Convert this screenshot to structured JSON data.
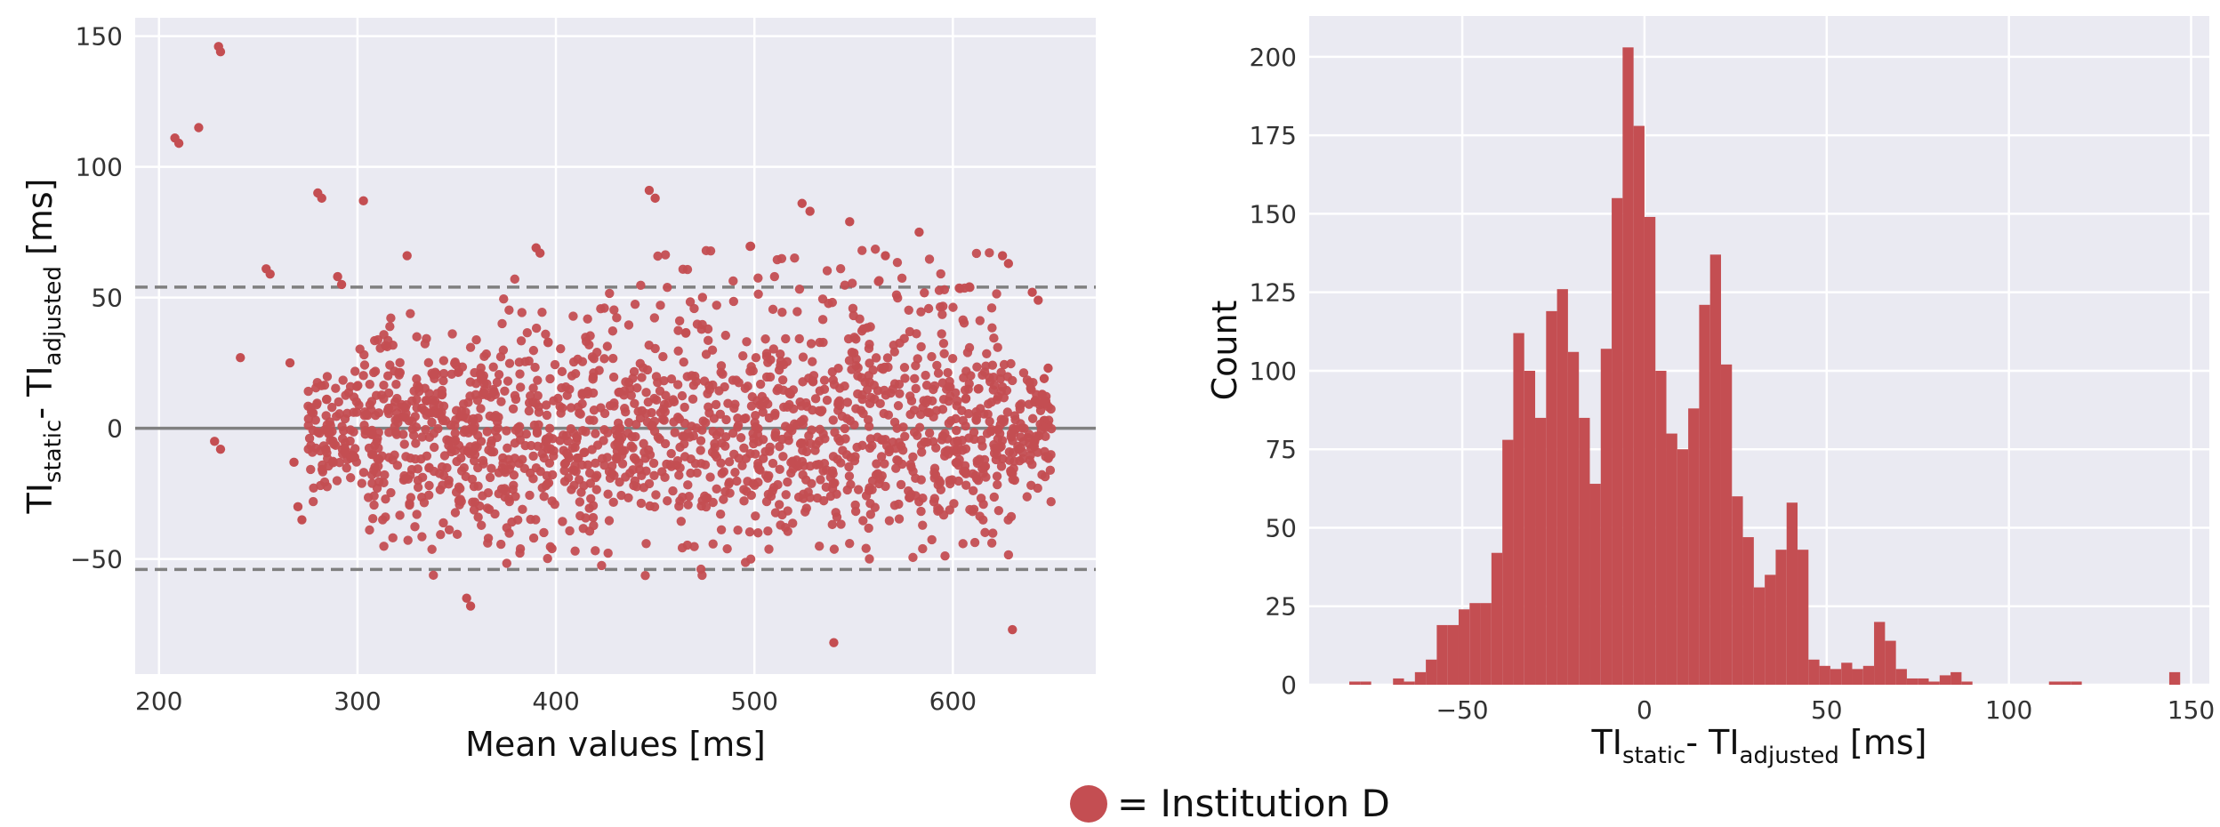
{
  "chart_data": [
    {
      "type": "scatter",
      "title": "",
      "xlabel": "Mean values [ms]",
      "ylabel": {
        "base1": "TI",
        "sub1": "static",
        "sep": "- ",
        "base2": "TI",
        "sub2": "adjusted",
        "unit": " [ms]"
      },
      "xlim": [
        188,
        672
      ],
      "ylim": [
        -94,
        157
      ],
      "xticks": [
        200,
        300,
        400,
        500,
        600
      ],
      "yticks": [
        -50,
        0,
        50,
        100,
        150
      ],
      "ytick_labels": [
        "−50",
        "0",
        "50",
        "100",
        "150"
      ],
      "grid": true,
      "mean_line": 0,
      "limits_of_agreement": [
        54,
        -54
      ],
      "color": "#c44e52",
      "background": "#eaeaf2",
      "outlier_points": [
        {
          "x": 208,
          "y": 111
        },
        {
          "x": 210,
          "y": 109
        },
        {
          "x": 220,
          "y": 115
        },
        {
          "x": 230,
          "y": 146
        },
        {
          "x": 231,
          "y": 144
        },
        {
          "x": 228,
          "y": -5
        },
        {
          "x": 231,
          "y": -8
        },
        {
          "x": 241,
          "y": 27
        },
        {
          "x": 254,
          "y": 61
        },
        {
          "x": 256,
          "y": 59
        },
        {
          "x": 280,
          "y": 90
        },
        {
          "x": 282,
          "y": 88
        },
        {
          "x": 303,
          "y": 87
        },
        {
          "x": 290,
          "y": 58
        },
        {
          "x": 292,
          "y": 55
        },
        {
          "x": 325,
          "y": 66
        },
        {
          "x": 447,
          "y": 91
        },
        {
          "x": 450,
          "y": 88
        },
        {
          "x": 390,
          "y": 69
        },
        {
          "x": 392,
          "y": 67
        },
        {
          "x": 355,
          "y": -65
        },
        {
          "x": 357,
          "y": -68
        },
        {
          "x": 540,
          "y": -82
        },
        {
          "x": 630,
          "y": -77
        },
        {
          "x": 625,
          "y": 66
        },
        {
          "x": 628,
          "y": 63
        },
        {
          "x": 640,
          "y": 52
        },
        {
          "x": 643,
          "y": 49
        },
        {
          "x": 648,
          "y": 23
        },
        {
          "x": 646,
          "y": 19
        },
        {
          "x": 645,
          "y": 13
        },
        {
          "x": 268,
          "y": -13
        },
        {
          "x": 270,
          "y": -30
        },
        {
          "x": 272,
          "y": -35
        },
        {
          "x": 266,
          "y": 25
        },
        {
          "x": 524,
          "y": 86
        },
        {
          "x": 528,
          "y": 83
        },
        {
          "x": 548,
          "y": 79
        },
        {
          "x": 583,
          "y": 75
        },
        {
          "x": 566,
          "y": 66
        }
      ],
      "dense_cluster": {
        "x_range": [
          275,
          650
        ],
        "y_range": [
          -60,
          75
        ],
        "count": 1700,
        "seed": 7
      },
      "legend": {
        "marker": "circle",
        "label": "= Institution D",
        "placement": "bottom-center"
      }
    },
    {
      "type": "bar",
      "title": "",
      "xlabel": {
        "base1": "TI",
        "sub1": "static",
        "sep": "- ",
        "base2": "TI",
        "sub2": "adjusted",
        "unit": " [ms]"
      },
      "ylabel": "Count",
      "xlim": [
        -92,
        155
      ],
      "ylim": [
        0,
        213
      ],
      "xticks": [
        -50,
        0,
        50,
        100,
        150
      ],
      "xtick_labels": [
        "−50",
        "0",
        "50",
        "100",
        "150"
      ],
      "yticks": [
        0,
        25,
        50,
        75,
        100,
        125,
        150,
        175,
        200
      ],
      "grid": true,
      "color": "#c44e52",
      "background": "#eaeaf2",
      "bin_width": 3,
      "bins_start": [
        -81,
        -78,
        -75,
        -72,
        -69,
        -66,
        -63,
        -60,
        -57,
        -54,
        -51,
        -48,
        -45,
        -42,
        -39,
        -36,
        -33,
        -30,
        -27,
        -24,
        -21,
        -18,
        -15,
        -12,
        -9,
        -6,
        -3,
        0,
        3,
        6,
        9,
        12,
        15,
        18,
        21,
        24,
        27,
        30,
        33,
        36,
        39,
        42,
        45,
        48,
        51,
        54,
        57,
        60,
        63,
        66,
        69,
        72,
        75,
        78,
        81,
        84,
        87,
        90,
        93,
        96,
        99,
        102,
        105,
        108,
        111,
        114,
        117,
        120,
        123,
        126,
        129,
        132,
        135,
        138,
        141,
        144
      ],
      "counts": [
        1,
        1,
        0,
        0,
        2,
        1,
        4,
        8,
        19,
        19,
        24,
        26,
        26,
        42,
        78,
        112,
        100,
        85,
        119,
        126,
        106,
        85,
        64,
        107,
        155,
        203,
        178,
        149,
        100,
        80,
        75,
        88,
        121,
        137,
        102,
        60,
        47,
        31,
        35,
        43,
        58,
        43,
        8,
        6,
        5,
        7,
        5,
        6,
        20,
        14,
        5,
        2,
        2,
        1,
        3,
        4,
        1,
        0,
        0,
        0,
        0,
        0,
        0,
        0,
        1,
        1,
        1,
        0,
        0,
        0,
        0,
        0,
        0,
        0,
        0,
        4
      ]
    }
  ]
}
